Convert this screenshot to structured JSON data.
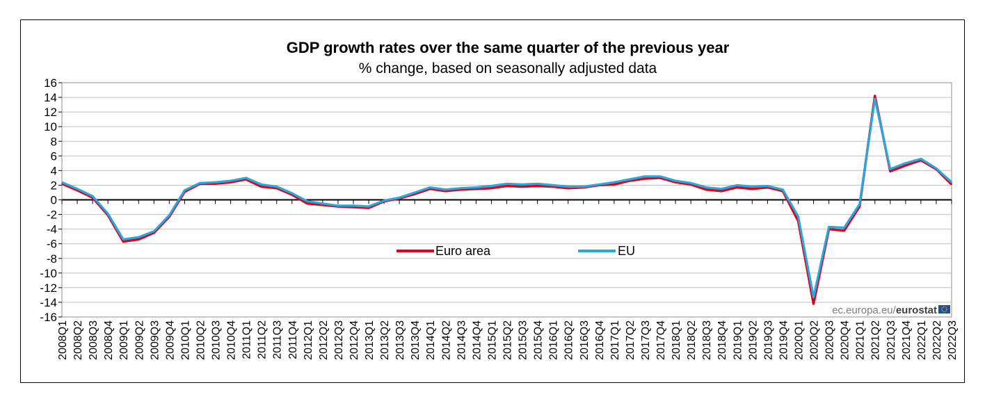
{
  "chart_data": {
    "type": "line",
    "title": "GDP growth rates over the same quarter of the previous year",
    "subtitle": "% change, based on seasonally adjusted data",
    "ylim": [
      -16,
      16
    ],
    "yticks": [
      16,
      14,
      12,
      10,
      8,
      6,
      4,
      2,
      0,
      -2,
      -4,
      -6,
      -8,
      -10,
      -12,
      -14,
      -16
    ],
    "grid": true,
    "legend_position": "center",
    "categories": [
      "2008Q1",
      "2008Q2",
      "2008Q3",
      "2008Q4",
      "2009Q1",
      "2009Q2",
      "2009Q3",
      "2009Q4",
      "2010Q1",
      "2010Q2",
      "2010Q3",
      "2010Q4",
      "2011Q1",
      "2011Q2",
      "2011Q3",
      "2011Q4",
      "2012Q1",
      "2012Q2",
      "2012Q3",
      "2012Q4",
      "2013Q1",
      "2013Q2",
      "2013Q3",
      "2013Q4",
      "2014Q1",
      "2014Q2",
      "2014Q3",
      "2014Q4",
      "2015Q1",
      "2015Q2",
      "2015Q3",
      "2015Q4",
      "2016Q1",
      "2016Q2",
      "2016Q3",
      "2016Q4",
      "2017Q1",
      "2017Q2",
      "2017Q3",
      "2017Q4",
      "2018Q1",
      "2018Q2",
      "2018Q3",
      "2018Q4",
      "2019Q1",
      "2019Q2",
      "2019Q3",
      "2019Q4",
      "2020Q1",
      "2020Q2",
      "2020Q3",
      "2020Q4",
      "2021Q1",
      "2021Q2",
      "2021Q3",
      "2021Q4",
      "2022Q1",
      "2022Q2",
      "2022Q3"
    ],
    "series": [
      {
        "name": "Euro area",
        "color": "#e3001b",
        "values": [
          2.2,
          1.3,
          0.3,
          -2.1,
          -5.7,
          -5.4,
          -4.5,
          -2.3,
          1.1,
          2.2,
          2.2,
          2.4,
          2.8,
          1.8,
          1.6,
          0.7,
          -0.5,
          -0.7,
          -0.9,
          -1.0,
          -1.1,
          -0.2,
          0.2,
          0.8,
          1.5,
          1.2,
          1.4,
          1.5,
          1.6,
          1.9,
          1.8,
          1.9,
          1.8,
          1.6,
          1.7,
          2.0,
          2.1,
          2.6,
          2.9,
          3.0,
          2.4,
          2.1,
          1.4,
          1.2,
          1.7,
          1.5,
          1.7,
          1.2,
          -2.9,
          -14.2,
          -4.0,
          -4.2,
          -0.9,
          14.2,
          3.9,
          4.7,
          5.4,
          4.2,
          2.1
        ]
      },
      {
        "name": "EU",
        "color": "#25a9df",
        "values": [
          2.4,
          1.5,
          0.5,
          -1.9,
          -5.4,
          -5.1,
          -4.3,
          -2.1,
          1.3,
          2.3,
          2.4,
          2.6,
          3.0,
          2.1,
          1.8,
          0.9,
          -0.2,
          -0.5,
          -0.8,
          -0.8,
          -0.9,
          -0.1,
          0.3,
          1.0,
          1.7,
          1.4,
          1.6,
          1.7,
          1.9,
          2.2,
          2.1,
          2.2,
          2.0,
          1.8,
          1.8,
          2.1,
          2.4,
          2.8,
          3.2,
          3.2,
          2.6,
          2.3,
          1.7,
          1.5,
          2.0,
          1.8,
          1.9,
          1.4,
          -2.3,
          -13.3,
          -3.7,
          -3.8,
          -0.6,
          13.8,
          4.2,
          5.0,
          5.6,
          4.3,
          2.4
        ]
      }
    ]
  },
  "source": {
    "prefix": "ec.europa.eu/",
    "brand": "eurostat"
  }
}
